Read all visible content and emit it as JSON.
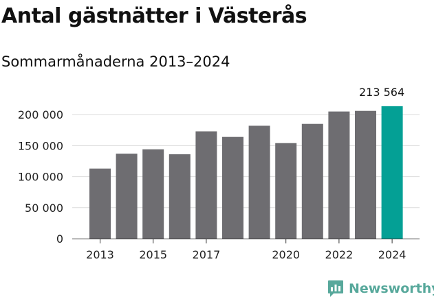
{
  "title": "Antal gästnätter i Västerås",
  "subtitle": "Sommarmånaderna 2013–2024",
  "brand": {
    "name": "Newsworthy",
    "icon": "newsworthy-logo-icon",
    "color": "#57a89b"
  },
  "chart_data": {
    "type": "bar",
    "categories": [
      "2013",
      "2014",
      "2015",
      "2016",
      "2017",
      "2018",
      "2019",
      "2020",
      "2021",
      "2022",
      "2023",
      "2024"
    ],
    "values": [
      113000,
      137000,
      144000,
      136000,
      173000,
      164000,
      182000,
      154000,
      185000,
      205000,
      206000,
      213564
    ],
    "x_tick_labels": [
      "2013",
      "",
      "2015",
      "",
      "2017",
      "",
      "",
      "2020",
      "",
      "2022",
      "",
      "2024"
    ],
    "y_ticks": [
      0,
      50000,
      100000,
      150000,
      200000
    ],
    "y_tick_labels": [
      "0",
      "50 000",
      "100 000",
      "150 000",
      "200 000"
    ],
    "ylim": [
      0,
      230000
    ],
    "annotation": {
      "index": 11,
      "label": "213 564"
    },
    "bar_color": "#6e6d71",
    "highlight_color": "#04a095",
    "grid": true,
    "xlabel": "",
    "ylabel": ""
  }
}
